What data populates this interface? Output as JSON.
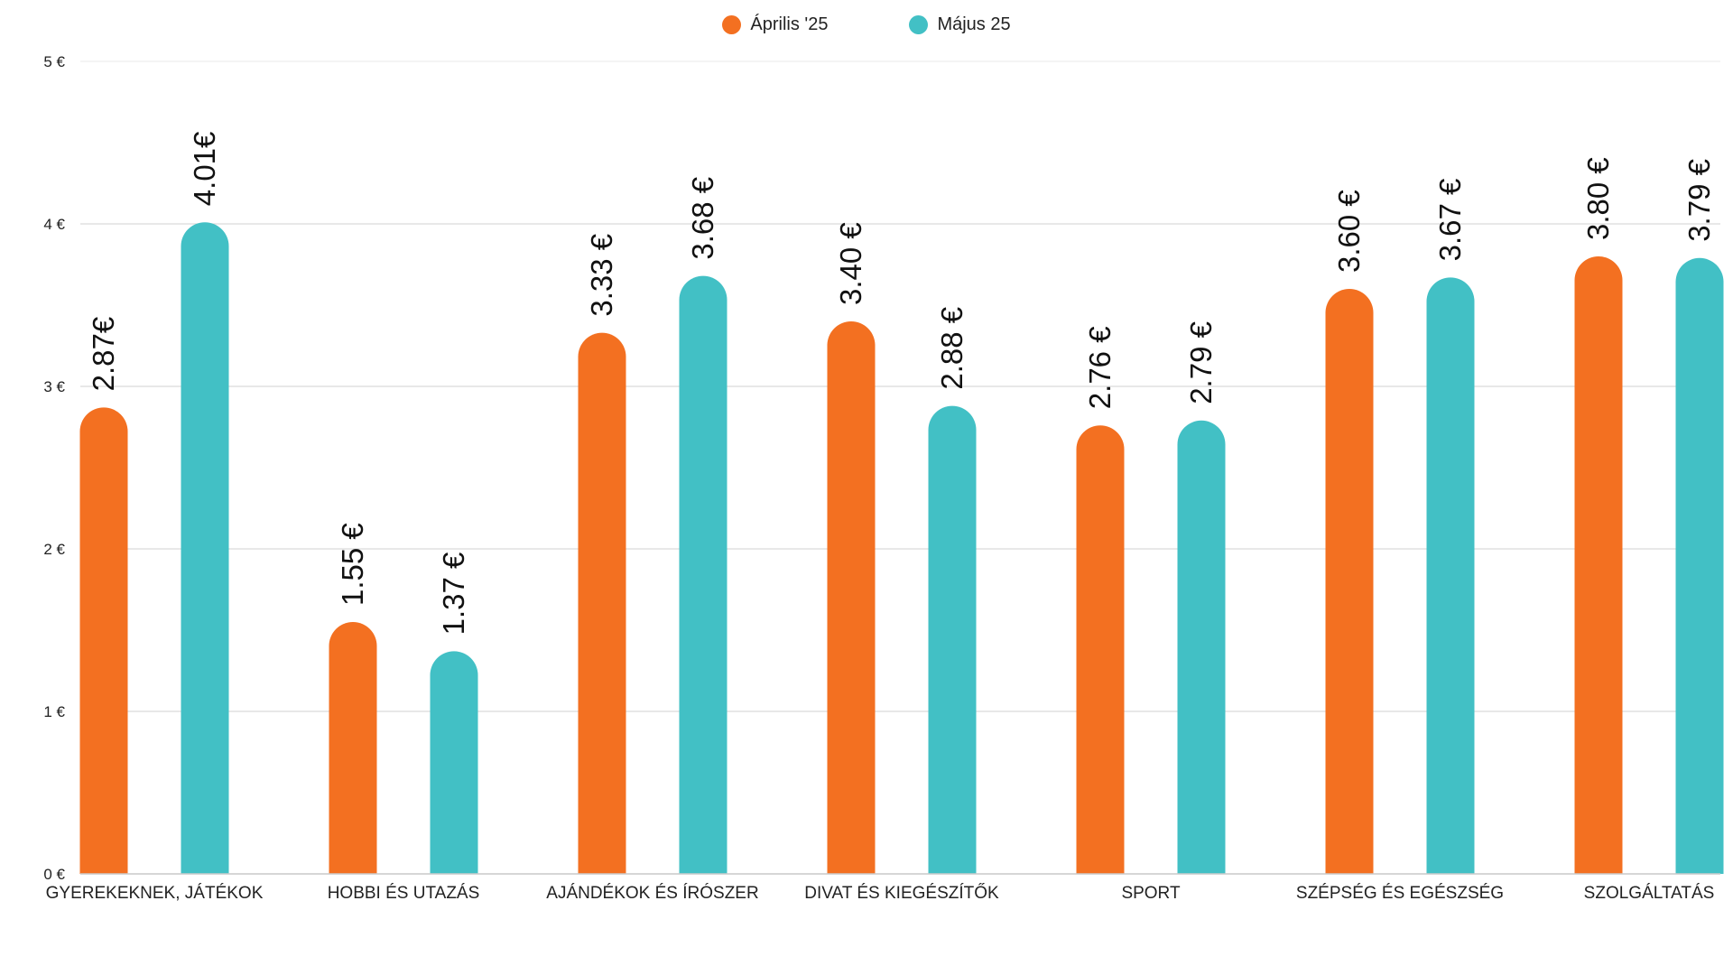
{
  "chart_data": {
    "type": "bar",
    "title": "",
    "xlabel": "",
    "ylabel": "",
    "ylim": [
      0,
      5
    ],
    "yticks": [
      0,
      1,
      2,
      3,
      4,
      5
    ],
    "ytick_labels": [
      "0 €",
      "1 €",
      "2 €",
      "3 €",
      "4 €",
      "5 €"
    ],
    "grid": true,
    "legend_position": "top-center",
    "categories": [
      "GYEREKEKNEK, JÁTÉKOK",
      "HOBBI ÉS UTAZÁS",
      "AJÁNDÉKOK ÉS ÍRÓSZER",
      "DIVAT ÉS KIEGÉSZÍTŐK",
      "SPORT",
      "SZÉPSÉG ÉS EGÉSZSÉG",
      "SZOLGÁLTATÁS"
    ],
    "series": [
      {
        "name": "Április '25",
        "color": "#F37021",
        "values": [
          2.87,
          1.55,
          3.33,
          3.4,
          2.76,
          3.6,
          3.8
        ],
        "labels": [
          "2.87€",
          "1.55 €",
          "3.33 €",
          "3.40 €",
          "2.76 €",
          "3.60 €",
          "3.80 €"
        ]
      },
      {
        "name": "Május 25",
        "color": "#42C0C5",
        "values": [
          4.01,
          1.37,
          3.68,
          2.88,
          2.79,
          3.67,
          3.79
        ],
        "labels": [
          "4.01€",
          "1.37 €",
          "3.68 €",
          "2.88 €",
          "2.79 €",
          "3.67 €",
          "3.79 €"
        ]
      }
    ]
  }
}
